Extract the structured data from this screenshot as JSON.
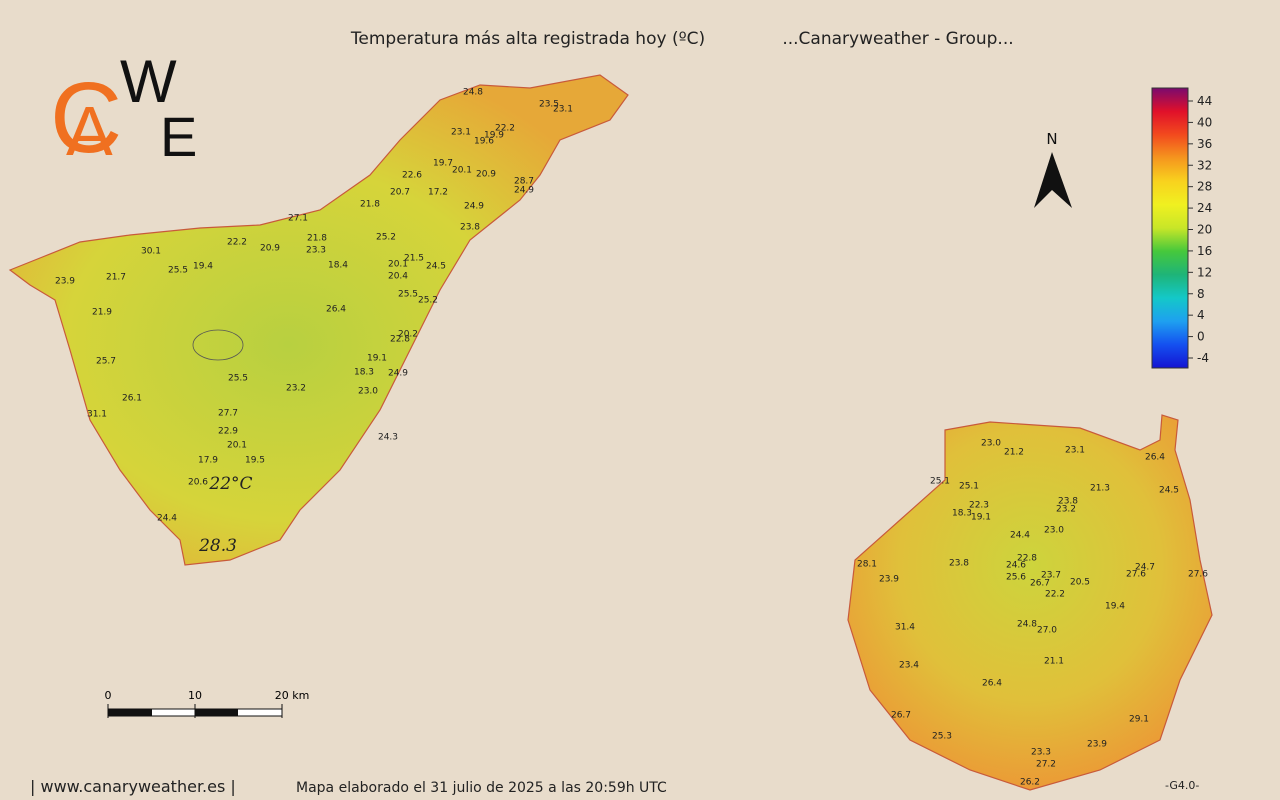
{
  "header": {
    "title": "Temperatura más alta registrada hoy (ºC)",
    "group": "...Canaryweather - Group..."
  },
  "logo": {
    "letters": [
      "C",
      "A",
      "W",
      "E"
    ]
  },
  "legend": {
    "ticks": [
      44,
      40,
      36,
      32,
      28,
      24,
      20,
      16,
      12,
      8,
      4,
      0,
      -4
    ],
    "colors": [
      "#7a0a6e",
      "#e0102a",
      "#f24a1e",
      "#f5961e",
      "#f8d21e",
      "#f0f020",
      "#c8e628",
      "#46c83c",
      "#1eb478",
      "#14c8c8",
      "#1ea0f0",
      "#1450f0",
      "#1414d2"
    ]
  },
  "north": "N",
  "scale": {
    "labels": [
      "0",
      "10",
      "20 km"
    ]
  },
  "tenerife": {
    "stations": [
      "24.8",
      "23.5",
      "23.1",
      "23.1",
      "19.9",
      "22.2",
      "19.6",
      "19.7",
      "20.1",
      "20.9",
      "22.6",
      "28.7",
      "24.9",
      "20.7",
      "17.2",
      "21.8",
      "24.9",
      "27.1",
      "23.8",
      "22.2",
      "20.9",
      "21.8",
      "25.2",
      "23.3",
      "30.1",
      "25.5",
      "19.4",
      "21.5",
      "20.1",
      "24.5",
      "18.4",
      "21.7",
      "20.4",
      "23.9",
      "25.5",
      "25.2",
      "21.9",
      "26.4",
      "20.2",
      "22.8",
      "25.7",
      "19.1",
      "18.3",
      "24.9",
      "25.5",
      "23.2",
      "23.0",
      "26.1",
      "31.1",
      "27.7",
      "22.9",
      "24.3",
      "20.1",
      "17.9",
      "19.5",
      "20.6",
      "24.4"
    ],
    "highlights": [
      "22°C",
      "28.3"
    ]
  },
  "gran_canaria": {
    "stations": [
      "23.0",
      "21.2",
      "23.1",
      "26.4",
      "25.1",
      "25.1",
      "21.3",
      "24.5",
      "22.3",
      "23.8",
      "23.2",
      "18.3",
      "19.1",
      "24.4",
      "23.0",
      "22.8",
      "24.6",
      "23.8",
      "28.1",
      "24.7",
      "27.6",
      "27.6",
      "25.6",
      "23.7",
      "26.7",
      "20.5",
      "23.9",
      "22.2",
      "19.4",
      "24.8",
      "27.0",
      "31.4",
      "21.1",
      "23.4",
      "26.4",
      "26.7",
      "29.1",
      "25.3",
      "23.9",
      "23.3",
      "27.2",
      "26.2"
    ]
  },
  "footer": {
    "site": "| www.canaryweather.es |",
    "made": "Mapa elaborado el 31 julio de 2025 a las 20:59h UTC",
    "version": "-G4.0-"
  }
}
